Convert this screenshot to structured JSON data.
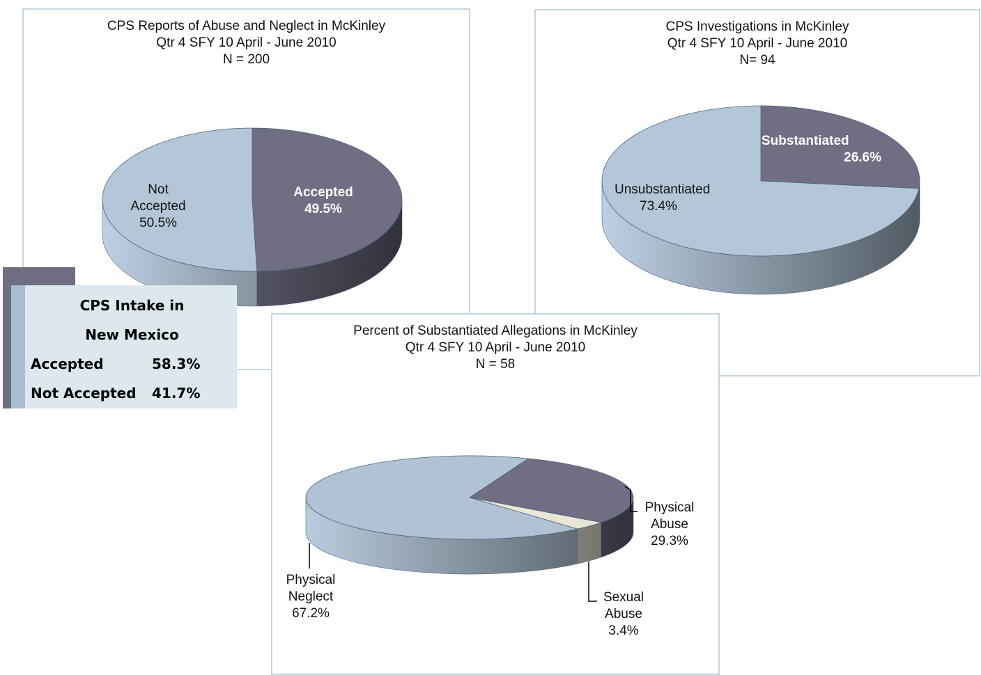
{
  "chart_data": [
    {
      "type": "pie",
      "title": "CPS Reports of Abuse and Neglect in McKinley",
      "subtitle": "Qtr 4 SFY 10   April - June 2010",
      "annotation": "N = 200",
      "categories": [
        "Accepted",
        "Not Accepted"
      ],
      "values": [
        49.5,
        50.5
      ],
      "value_labels": [
        "49.5%",
        "50.5%"
      ],
      "colors": [
        "#6f6e82",
        "#b4c7d9"
      ]
    },
    {
      "type": "pie",
      "title": "CPS Investigations in McKinley",
      "subtitle": "Qtr  4 SFY 10   April - June  2010",
      "annotation": "N= 94",
      "categories": [
        "Substantiated",
        "Unsubstantiated"
      ],
      "values": [
        26.6,
        73.4
      ],
      "value_labels": [
        "26.6%",
        "73.4%"
      ],
      "colors": [
        "#6f6e82",
        "#b4c7d9"
      ]
    },
    {
      "type": "pie",
      "title": "Percent of Substantiated Allegations in McKinley",
      "subtitle": "Qtr 4 SFY 10  April - June  2010",
      "annotation": "N = 58",
      "categories": [
        "Physical Abuse",
        "Sexual Abuse",
        "Physical Neglect"
      ],
      "values": [
        29.3,
        3.4,
        67.2
      ],
      "value_labels": [
        "29.3%",
        "3.4%",
        "67.2%"
      ],
      "colors": [
        "#6f6e82",
        "#e9e6d6",
        "#b0c2d3"
      ]
    }
  ],
  "info_box": {
    "title": "CPS Intake in New Mexico",
    "rows": [
      [
        "Accepted",
        "58.3%"
      ],
      [
        "Not Accepted",
        "41.7%"
      ]
    ]
  }
}
